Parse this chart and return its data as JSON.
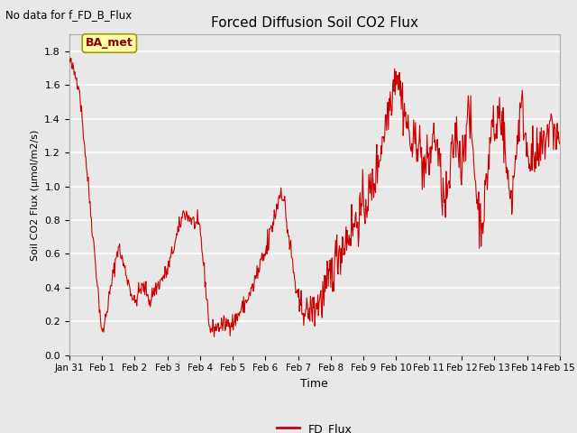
{
  "title": "Forced Diffusion Soil CO2 Flux",
  "top_left_text": "No data for f_FD_B_Flux",
  "xlabel": "Time",
  "ylabel": "Soil CO2 Flux (μmol/m2/s)",
  "legend_label": "FD_Flux",
  "line_color": "#cc0000",
  "legend_line_color": "#cc0000",
  "background_color": "#e8e8e8",
  "ylim": [
    0.0,
    1.9
  ],
  "yticks": [
    0.0,
    0.2,
    0.4,
    0.6,
    0.8,
    1.0,
    1.2,
    1.4,
    1.6,
    1.8
  ],
  "ba_met_box_color": "#ffffaa",
  "ba_met_text": "BA_met",
  "title_fontsize": 11,
  "label_fontsize": 8,
  "tick_fontsize": 8
}
